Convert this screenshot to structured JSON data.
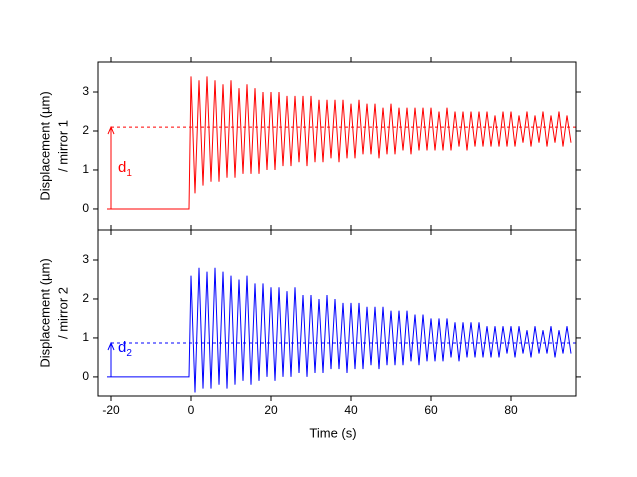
{
  "chart_data": [
    {
      "type": "line",
      "color": "#ff0000",
      "ylabel": [
        "Displacement (µm)",
        "/ mirror 1"
      ],
      "xlim": [
        -23.25,
        96.25
      ],
      "ylim": [
        -0.54,
        3.77
      ],
      "yticks": [
        0,
        1,
        2,
        3
      ],
      "annotation": {
        "text": "d",
        "subscript": "1",
        "x": -20,
        "level": 2.1
      },
      "x": [
        -21,
        -0.5,
        0,
        1,
        2,
        3,
        4,
        5,
        6,
        7,
        8,
        9,
        10,
        11,
        12,
        13,
        14,
        15,
        16,
        17,
        18,
        19,
        20,
        21,
        22,
        23,
        24,
        25,
        26,
        27,
        28,
        29,
        30,
        31,
        32,
        33,
        34,
        35,
        36,
        37,
        38,
        39,
        40,
        41,
        42,
        43,
        44,
        45,
        46,
        47,
        48,
        49,
        50,
        51,
        52,
        53,
        54,
        55,
        56,
        57,
        58,
        59,
        60,
        61,
        62,
        63,
        64,
        65,
        66,
        67,
        68,
        69,
        70,
        71,
        72,
        73,
        74,
        75,
        76,
        77,
        78,
        79,
        80,
        81,
        82,
        83,
        84,
        85,
        86,
        87,
        88,
        89,
        90,
        91,
        92,
        93,
        94,
        95
      ],
      "values": [
        0,
        0,
        3.4,
        0.4,
        3.3,
        0.6,
        3.4,
        0.7,
        3.3,
        0.7,
        3.2,
        0.8,
        3.3,
        0.8,
        3.1,
        0.9,
        3.2,
        0.9,
        3.1,
        0.9,
        3.0,
        1.0,
        3.0,
        1.0,
        3.0,
        1.1,
        2.9,
        1.1,
        2.9,
        1.2,
        2.9,
        1.1,
        2.9,
        1.2,
        2.8,
        1.2,
        2.8,
        1.3,
        2.8,
        1.2,
        2.8,
        1.3,
        2.7,
        1.3,
        2.8,
        1.4,
        2.7,
        1.4,
        2.7,
        1.3,
        2.6,
        1.4,
        2.7,
        1.4,
        2.6,
        1.5,
        2.6,
        1.4,
        2.6,
        1.5,
        2.6,
        1.5,
        2.6,
        1.5,
        2.5,
        1.5,
        2.6,
        1.5,
        2.5,
        1.6,
        2.5,
        1.5,
        2.5,
        1.6,
        2.5,
        1.6,
        2.5,
        1.6,
        2.4,
        1.6,
        2.5,
        1.6,
        2.5,
        1.6,
        2.4,
        1.7,
        2.5,
        1.6,
        2.4,
        1.7,
        2.5,
        1.6,
        2.4,
        1.7,
        2.5,
        1.6,
        2.4,
        1.7
      ]
    },
    {
      "type": "line",
      "color": "#0000ff",
      "ylabel": [
        "Displacement (µm)",
        "/ mirror 2"
      ],
      "xlabel": "Time (s)",
      "xlim": [
        -23.25,
        96.25
      ],
      "xticks": [
        -20,
        0,
        20,
        40,
        60,
        80
      ],
      "ylim": [
        -0.49,
        3.77
      ],
      "yticks": [
        0,
        1,
        2,
        3
      ],
      "annotation": {
        "text": "d",
        "subscript": "2",
        "x": -20,
        "level": 0.87
      },
      "x": [
        -21,
        -0.5,
        0,
        1,
        2,
        3,
        4,
        5,
        6,
        7,
        8,
        9,
        10,
        11,
        12,
        13,
        14,
        15,
        16,
        17,
        18,
        19,
        20,
        21,
        22,
        23,
        24,
        25,
        26,
        27,
        28,
        29,
        30,
        31,
        32,
        33,
        34,
        35,
        36,
        37,
        38,
        39,
        40,
        41,
        42,
        43,
        44,
        45,
        46,
        47,
        48,
        49,
        50,
        51,
        52,
        53,
        54,
        55,
        56,
        57,
        58,
        59,
        60,
        61,
        62,
        63,
        64,
        65,
        66,
        67,
        68,
        69,
        70,
        71,
        72,
        73,
        74,
        75,
        76,
        77,
        78,
        79,
        80,
        81,
        82,
        83,
        84,
        85,
        86,
        87,
        88,
        89,
        90,
        91,
        92,
        93,
        94,
        95
      ],
      "values": [
        0,
        0,
        2.6,
        -0.4,
        2.8,
        -0.3,
        2.7,
        -0.3,
        2.8,
        -0.2,
        2.7,
        -0.3,
        2.6,
        -0.2,
        2.5,
        -0.1,
        2.6,
        -0.2,
        2.4,
        -0.1,
        2.4,
        0.0,
        2.3,
        -0.1,
        2.3,
        0.0,
        2.2,
        0.0,
        2.3,
        0.1,
        2.1,
        0.0,
        2.1,
        0.1,
        2.0,
        0.1,
        2.1,
        0.2,
        2.0,
        0.2,
        1.9,
        0.1,
        1.9,
        0.2,
        1.9,
        0.2,
        1.8,
        0.3,
        1.8,
        0.2,
        1.8,
        0.3,
        1.7,
        0.3,
        1.7,
        0.3,
        1.7,
        0.4,
        1.6,
        0.3,
        1.6,
        0.4,
        1.5,
        0.4,
        1.5,
        0.4,
        1.5,
        0.5,
        1.4,
        0.4,
        1.4,
        0.5,
        1.4,
        0.5,
        1.4,
        0.5,
        1.3,
        0.5,
        1.3,
        0.5,
        1.3,
        0.6,
        1.3,
        0.5,
        1.3,
        0.6,
        1.2,
        0.5,
        1.3,
        0.6,
        1.2,
        0.6,
        1.3,
        0.5,
        1.2,
        0.6,
        1.3,
        0.6
      ]
    }
  ]
}
